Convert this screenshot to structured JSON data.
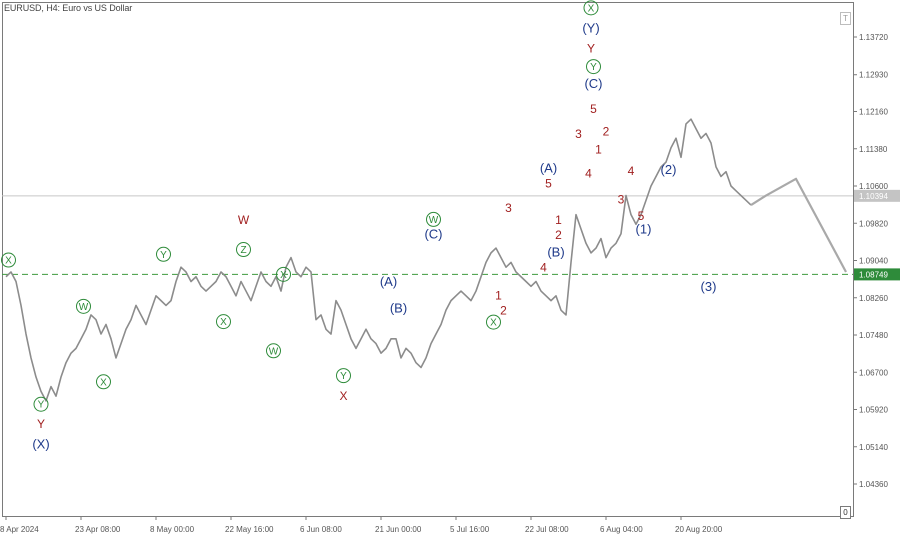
{
  "chart_title": "EURUSD, H4:  Euro vs US Dollar",
  "corner_top_label": "T",
  "corner_bottom_label": "0",
  "colors": {
    "price": "#8c8c8c",
    "forecast": "#a9a9a9",
    "green": "#2e8b3a",
    "blue": "#1f3a8a",
    "red": "#a12020",
    "support_line": "#3f9a3f",
    "support_badge": "#2e8b3a",
    "current_badge": "#c4c4c4"
  },
  "chart_data": {
    "type": "line",
    "title": "EURUSD, H4:  Euro vs US Dollar",
    "xlim": [
      0,
      146
    ],
    "ylim": [
      1.03785,
      1.14212
    ],
    "x_tick_labels": [
      {
        "pos": 0,
        "label": "8 Apr 2024"
      },
      {
        "pos": 15,
        "label": "23 Apr 08:00"
      },
      {
        "pos": 30,
        "label": "8 May 00:00"
      },
      {
        "pos": 45,
        "label": "22 May 16:00"
      },
      {
        "pos": 60,
        "label": "6 Jun 08:00"
      },
      {
        "pos": 75,
        "label": "21 Jun 00:00"
      },
      {
        "pos": 90,
        "label": "5 Jul 16:00"
      },
      {
        "pos": 105,
        "label": "22 Jul 08:00"
      },
      {
        "pos": 120,
        "label": "6 Aug 04:00"
      },
      {
        "pos": 135,
        "label": "20 Aug 20:00"
      }
    ],
    "y_ticks": [
      "1.04360",
      "1.05140",
      "1.05920",
      "1.06700",
      "1.07480",
      "1.08260",
      "1.09040",
      "1.09820",
      "1.10600",
      "1.11380",
      "1.12160",
      "1.12930",
      "1.13720"
    ],
    "support_level": {
      "value": 1.08749,
      "label": "1.08749"
    },
    "current_price": {
      "value": 1.10394,
      "label": "1.10394"
    },
    "price_series": [
      [
        0,
        1.087
      ],
      [
        1,
        1.088
      ],
      [
        2,
        1.086
      ],
      [
        3,
        1.081
      ],
      [
        4,
        1.075
      ],
      [
        5,
        1.07
      ],
      [
        6,
        1.066
      ],
      [
        7,
        1.063
      ],
      [
        8,
        1.061
      ],
      [
        9,
        1.064
      ],
      [
        10,
        1.062
      ],
      [
        11,
        1.066
      ],
      [
        12,
        1.069
      ],
      [
        13,
        1.071
      ],
      [
        14,
        1.072
      ],
      [
        15,
        1.074
      ],
      [
        16,
        1.076
      ],
      [
        17,
        1.079
      ],
      [
        18,
        1.078
      ],
      [
        19,
        1.075
      ],
      [
        20,
        1.077
      ],
      [
        21,
        1.074
      ],
      [
        22,
        1.07
      ],
      [
        23,
        1.073
      ],
      [
        24,
        1.076
      ],
      [
        25,
        1.078
      ],
      [
        26,
        1.081
      ],
      [
        27,
        1.079
      ],
      [
        28,
        1.077
      ],
      [
        29,
        1.08
      ],
      [
        30,
        1.083
      ],
      [
        31,
        1.082
      ],
      [
        32,
        1.081
      ],
      [
        33,
        1.082
      ],
      [
        34,
        1.086
      ],
      [
        35,
        1.089
      ],
      [
        36,
        1.088
      ],
      [
        37,
        1.086
      ],
      [
        38,
        1.087
      ],
      [
        39,
        1.085
      ],
      [
        40,
        1.084
      ],
      [
        41,
        1.085
      ],
      [
        42,
        1.086
      ],
      [
        43,
        1.088
      ],
      [
        44,
        1.087
      ],
      [
        45,
        1.085
      ],
      [
        46,
        1.083
      ],
      [
        47,
        1.086
      ],
      [
        48,
        1.084
      ],
      [
        49,
        1.082
      ],
      [
        50,
        1.085
      ],
      [
        51,
        1.088
      ],
      [
        52,
        1.086
      ],
      [
        53,
        1.085
      ],
      [
        54,
        1.087
      ],
      [
        55,
        1.084
      ],
      [
        56,
        1.089
      ],
      [
        57,
        1.091
      ],
      [
        58,
        1.088
      ],
      [
        59,
        1.087
      ],
      [
        60,
        1.089
      ],
      [
        61,
        1.088
      ],
      [
        62,
        1.078
      ],
      [
        63,
        1.079
      ],
      [
        64,
        1.076
      ],
      [
        65,
        1.075
      ],
      [
        66,
        1.082
      ],
      [
        67,
        1.08
      ],
      [
        68,
        1.077
      ],
      [
        69,
        1.074
      ],
      [
        70,
        1.072
      ],
      [
        71,
        1.074
      ],
      [
        72,
        1.076
      ],
      [
        73,
        1.074
      ],
      [
        74,
        1.073
      ],
      [
        75,
        1.071
      ],
      [
        76,
        1.072
      ],
      [
        77,
        1.074
      ],
      [
        78,
        1.074
      ],
      [
        79,
        1.07
      ],
      [
        80,
        1.072
      ],
      [
        81,
        1.071
      ],
      [
        82,
        1.069
      ],
      [
        83,
        1.068
      ],
      [
        84,
        1.07
      ],
      [
        85,
        1.073
      ],
      [
        86,
        1.075
      ],
      [
        87,
        1.077
      ],
      [
        88,
        1.08
      ],
      [
        89,
        1.082
      ],
      [
        90,
        1.083
      ],
      [
        91,
        1.084
      ],
      [
        92,
        1.083
      ],
      [
        93,
        1.082
      ],
      [
        94,
        1.084
      ],
      [
        95,
        1.087
      ],
      [
        96,
        1.09
      ],
      [
        97,
        1.092
      ],
      [
        98,
        1.093
      ],
      [
        99,
        1.091
      ],
      [
        100,
        1.089
      ],
      [
        101,
        1.09
      ],
      [
        102,
        1.088
      ],
      [
        103,
        1.087
      ],
      [
        104,
        1.086
      ],
      [
        105,
        1.085
      ],
      [
        106,
        1.086
      ],
      [
        107,
        1.084
      ],
      [
        108,
        1.083
      ],
      [
        109,
        1.082
      ],
      [
        110,
        1.083
      ],
      [
        111,
        1.08
      ],
      [
        112,
        1.079
      ],
      [
        113,
        1.09
      ],
      [
        114,
        1.1
      ],
      [
        115,
        1.097
      ],
      [
        116,
        1.094
      ],
      [
        117,
        1.092
      ],
      [
        118,
        1.093
      ],
      [
        119,
        1.095
      ],
      [
        120,
        1.091
      ],
      [
        121,
        1.093
      ],
      [
        122,
        1.094
      ],
      [
        123,
        1.096
      ],
      [
        124,
        1.104
      ],
      [
        125,
        1.1
      ],
      [
        126,
        1.098
      ],
      [
        127,
        1.1
      ],
      [
        128,
        1.103
      ],
      [
        129,
        1.106
      ],
      [
        130,
        1.108
      ],
      [
        131,
        1.11
      ],
      [
        132,
        1.111
      ],
      [
        133,
        1.114
      ],
      [
        134,
        1.116
      ],
      [
        135,
        1.112
      ],
      [
        136,
        1.119
      ],
      [
        137,
        1.12
      ],
      [
        138,
        1.118
      ],
      [
        139,
        1.116
      ],
      [
        140,
        1.117
      ],
      [
        141,
        1.115
      ],
      [
        142,
        1.11
      ],
      [
        143,
        1.108
      ],
      [
        144,
        1.109
      ],
      [
        145,
        1.106
      ],
      [
        146,
        1.105
      ],
      [
        147,
        1.104
      ],
      [
        148,
        1.103
      ],
      [
        149,
        1.102
      ]
    ],
    "forecast_path": [
      [
        149,
        1.102
      ],
      [
        152,
        1.104
      ],
      [
        158,
        1.1075
      ],
      [
        168,
        1.088
      ]
    ],
    "wave_labels": [
      {
        "text": "X",
        "style": "circle",
        "color": "green",
        "x": 0.5,
        "y": 1.0905
      },
      {
        "text": "Y",
        "style": "circle",
        "color": "green",
        "x": 7,
        "y": 1.0603
      },
      {
        "text": "Y",
        "style": "plain",
        "color": "red",
        "x": 7,
        "y": 1.0563
      },
      {
        "text": "(X)",
        "style": "plain",
        "color": "blue",
        "x": 7,
        "y": 1.052
      },
      {
        "text": "W",
        "style": "circle",
        "color": "green",
        "x": 15.5,
        "y": 1.0808
      },
      {
        "text": "X",
        "style": "circle",
        "color": "green",
        "x": 19.5,
        "y": 1.065
      },
      {
        "text": "Y",
        "style": "circle",
        "color": "green",
        "x": 31.5,
        "y": 1.0917
      },
      {
        "text": "X",
        "style": "circle",
        "color": "green",
        "x": 43.5,
        "y": 1.0776
      },
      {
        "text": "W",
        "style": "plain",
        "color": "red",
        "x": 47.5,
        "y": 1.099
      },
      {
        "text": "Z",
        "style": "circle",
        "color": "green",
        "x": 47.5,
        "y": 1.0927
      },
      {
        "text": "X",
        "style": "circle",
        "color": "green",
        "x": 55.5,
        "y": 1.0875
      },
      {
        "text": "W",
        "style": "circle",
        "color": "green",
        "x": 53.5,
        "y": 1.0715
      },
      {
        "text": "Y",
        "style": "circle",
        "color": "green",
        "x": 67.5,
        "y": 1.0663
      },
      {
        "text": "X",
        "style": "plain",
        "color": "red",
        "x": 67.5,
        "y": 1.0621
      },
      {
        "text": "(A)",
        "style": "plain",
        "color": "blue",
        "x": 76.5,
        "y": 1.086
      },
      {
        "text": "(B)",
        "style": "plain",
        "color": "blue",
        "x": 78.5,
        "y": 1.0805
      },
      {
        "text": "W",
        "style": "circle",
        "color": "green",
        "x": 85.5,
        "y": 1.099
      },
      {
        "text": "(C)",
        "style": "plain",
        "color": "blue",
        "x": 85.5,
        "y": 1.096
      },
      {
        "text": "1",
        "style": "plain",
        "color": "red",
        "x": 98.5,
        "y": 1.0832
      },
      {
        "text": "2",
        "style": "plain",
        "color": "red",
        "x": 99.5,
        "y": 1.08
      },
      {
        "text": "X",
        "style": "circle",
        "color": "green",
        "x": 97.5,
        "y": 1.0775
      },
      {
        "text": "3",
        "style": "plain",
        "color": "red",
        "x": 100.5,
        "y": 1.1015
      },
      {
        "text": "4",
        "style": "plain",
        "color": "red",
        "x": 107.5,
        "y": 1.089
      },
      {
        "text": "(A)",
        "style": "plain",
        "color": "blue",
        "x": 108.5,
        "y": 1.1098
      },
      {
        "text": "5",
        "style": "plain",
        "color": "red",
        "x": 108.5,
        "y": 1.1066
      },
      {
        "text": "1",
        "style": "plain",
        "color": "red",
        "x": 110.5,
        "y": 1.099
      },
      {
        "text": "2",
        "style": "plain",
        "color": "red",
        "x": 110.5,
        "y": 1.0958
      },
      {
        "text": "(B)",
        "style": "plain",
        "color": "blue",
        "x": 110,
        "y": 1.0922
      },
      {
        "text": "3",
        "style": "plain",
        "color": "red",
        "x": 114.5,
        "y": 1.117
      },
      {
        "text": "4",
        "style": "plain",
        "color": "red",
        "x": 116.5,
        "y": 1.1087
      },
      {
        "text": "1",
        "style": "plain",
        "color": "red",
        "x": 118.5,
        "y": 1.1137
      },
      {
        "text": "5",
        "style": "plain",
        "color": "red",
        "x": 117.5,
        "y": 1.1222
      },
      {
        "text": "2",
        "style": "plain",
        "color": "red",
        "x": 120,
        "y": 1.1175
      },
      {
        "text": "X",
        "style": "circle",
        "color": "green",
        "x": 117,
        "y": 1.1433
      },
      {
        "text": "(Y)",
        "style": "plain",
        "color": "blue",
        "x": 117,
        "y": 1.1391
      },
      {
        "text": "Y",
        "style": "plain",
        "color": "red",
        "x": 117,
        "y": 1.1349
      },
      {
        "text": "Y",
        "style": "circle",
        "color": "green",
        "x": 117.5,
        "y": 1.131
      },
      {
        "text": "(C)",
        "style": "plain",
        "color": "blue",
        "x": 117.5,
        "y": 1.1275
      },
      {
        "text": "4",
        "style": "plain",
        "color": "red",
        "x": 125,
        "y": 1.1092
      },
      {
        "text": "3",
        "style": "plain",
        "color": "red",
        "x": 123,
        "y": 1.1033
      },
      {
        "text": "5",
        "style": "plain",
        "color": "red",
        "x": 127,
        "y": 1.0998
      },
      {
        "text": "(1)",
        "style": "plain",
        "color": "blue",
        "x": 127.5,
        "y": 1.097
      },
      {
        "text": "(2)",
        "style": "plain",
        "color": "blue",
        "x": 132.5,
        "y": 1.1095
      },
      {
        "text": "(3)",
        "style": "plain",
        "color": "blue",
        "x": 140.5,
        "y": 1.085
      }
    ]
  }
}
